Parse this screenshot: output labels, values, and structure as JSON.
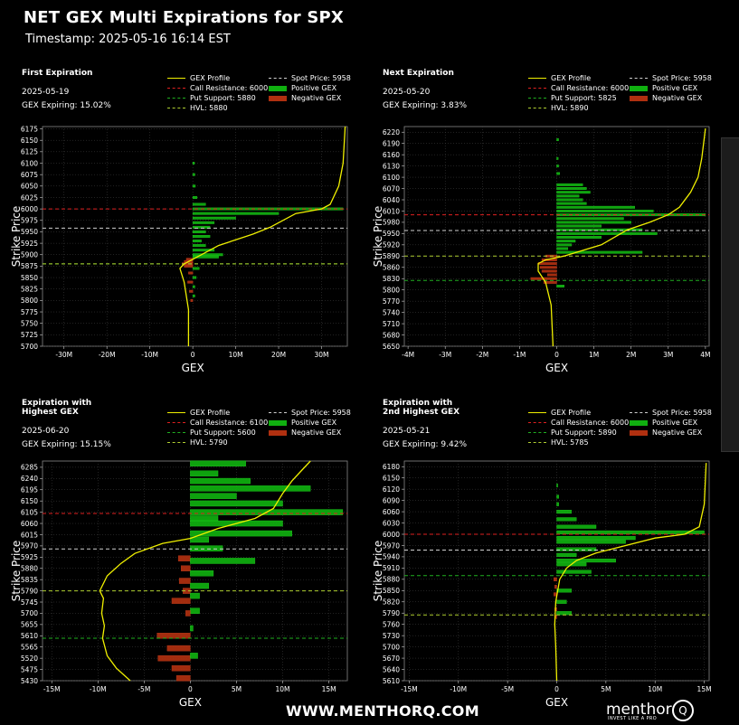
{
  "title": "NET GEX Multi Expirations for SPX",
  "timestamp": "Timestamp: 2025-05-16 16:14 EST",
  "footer_url": "WWW.MENTHORQ.COM",
  "brand": "menthor",
  "brand_tagline": "INVEST LIKE A PRO",
  "brand_mark": "Q",
  "colors": {
    "profile": "#f0f000",
    "call_res": "#e02020",
    "put_sup": "#20b020",
    "hvl": "#b0d030",
    "spot": "#d0d0d0",
    "positive": "#10b010",
    "negative": "#b03010",
    "background": "#000000"
  },
  "panels": [
    {
      "header": "First Expiration",
      "date": "2025-05-19",
      "gex_expiring": "GEX Expiring: 15.02%",
      "legend": {
        "profile": "GEX Profile",
        "call_res": "Call Resistance: 6000",
        "put_sup": "Put Support: 5880",
        "hvl": "HVL: 5880",
        "spot": "Spot Price: 5958",
        "pos": "Positive GEX",
        "neg": "Negative GEX"
      },
      "chart_data": {
        "type": "bar",
        "orientation": "horizontal",
        "xlabel": "GEX",
        "ylabel": "Strike Price",
        "xlim": [
          -35,
          36
        ],
        "ylim": [
          5700,
          6180
        ],
        "xticks": [
          -30,
          -20,
          -10,
          0,
          10,
          20,
          30
        ],
        "xtick_labels": [
          "-30M",
          "-20M",
          "-10M",
          "0",
          "10M",
          "20M",
          "30M"
        ],
        "yticks": [
          5700,
          5725,
          5750,
          5775,
          5800,
          5825,
          5850,
          5875,
          5900,
          5925,
          5950,
          5975,
          6000,
          6025,
          6050,
          6075,
          6100,
          6125,
          6150,
          6175
        ],
        "bar_height": 5,
        "bars": [
          [
            6000,
            35
          ],
          [
            5990,
            20
          ],
          [
            6010,
            3
          ],
          [
            5980,
            10
          ],
          [
            5970,
            5
          ],
          [
            5960,
            4
          ],
          [
            5950,
            3
          ],
          [
            5940,
            4
          ],
          [
            5930,
            2
          ],
          [
            5920,
            3
          ],
          [
            5910,
            5
          ],
          [
            5900,
            7
          ],
          [
            5895,
            6
          ],
          [
            5890,
            -1.5
          ],
          [
            5885,
            -2
          ],
          [
            5880,
            -2.5
          ],
          [
            5875,
            -2
          ],
          [
            5870,
            1.5
          ],
          [
            5860,
            -1
          ],
          [
            5850,
            0.8
          ],
          [
            5840,
            -1.2
          ],
          [
            5830,
            0.5
          ],
          [
            5820,
            -0.8
          ],
          [
            5810,
            0.5
          ],
          [
            5800,
            -0.5
          ],
          [
            6025,
            1
          ],
          [
            6050,
            0.6
          ],
          [
            6075,
            0.5
          ],
          [
            6100,
            0.4
          ]
        ],
        "profile": [
          [
            -1,
            5700
          ],
          [
            -1,
            5780
          ],
          [
            -2,
            5840
          ],
          [
            -3,
            5870
          ],
          [
            -2,
            5880
          ],
          [
            2,
            5900
          ],
          [
            6,
            5920
          ],
          [
            14,
            5945
          ],
          [
            18,
            5960
          ],
          [
            24,
            5990
          ],
          [
            30,
            6000
          ],
          [
            32,
            6010
          ],
          [
            34,
            6050
          ],
          [
            35,
            6100
          ],
          [
            35.5,
            6180
          ]
        ],
        "levels": {
          "call_res": 6000,
          "put_sup": 5880,
          "hvl": 5880,
          "spot": 5958
        }
      }
    },
    {
      "header": "Next Expiration",
      "date": "2025-05-20",
      "gex_expiring": "GEX Expiring: 3.83%",
      "legend": {
        "profile": "GEX Profile",
        "call_res": "Call Resistance: 6000",
        "put_sup": "Put Support: 5825",
        "hvl": "HVL: 5890",
        "spot": "Spot Price: 5958",
        "pos": "Positive GEX",
        "neg": "Negative GEX"
      },
      "chart_data": {
        "type": "bar",
        "orientation": "horizontal",
        "xlabel": "GEX",
        "ylabel": "Strike Price",
        "xlim": [
          -4.1,
          4.1
        ],
        "ylim": [
          5650,
          6235
        ],
        "xticks": [
          -4,
          -3,
          -2,
          -1,
          0,
          1,
          2,
          3,
          4
        ],
        "xtick_labels": [
          "-4M",
          "-3M",
          "-2M",
          "-1M",
          "0",
          "1M",
          "2M",
          "3M",
          "4M"
        ],
        "yticks": [
          5650,
          5680,
          5710,
          5740,
          5770,
          5800,
          5830,
          5860,
          5890,
          5920,
          5950,
          5980,
          6010,
          6040,
          6070,
          6100,
          6130,
          6160,
          6190,
          6220
        ],
        "bar_height": 6,
        "bars": [
          [
            6000,
            4
          ],
          [
            6010,
            2.6
          ],
          [
            6020,
            2.1
          ],
          [
            5990,
            1.8
          ],
          [
            5980,
            2
          ],
          [
            5970,
            1.2
          ],
          [
            5960,
            2.3
          ],
          [
            5950,
            2.7
          ],
          [
            5940,
            1.2
          ],
          [
            5930,
            0.5
          ],
          [
            5920,
            0.4
          ],
          [
            5910,
            0.3
          ],
          [
            5900,
            2.3
          ],
          [
            6030,
            0.8
          ],
          [
            6040,
            0.7
          ],
          [
            6050,
            0.6
          ],
          [
            6060,
            0.9
          ],
          [
            6070,
            0.8
          ],
          [
            6080,
            0.7
          ],
          [
            5890,
            -0.3
          ],
          [
            5880,
            -0.4
          ],
          [
            5870,
            -0.5
          ],
          [
            5860,
            -0.45
          ],
          [
            5850,
            -0.4
          ],
          [
            5840,
            -0.25
          ],
          [
            5830,
            -0.7
          ],
          [
            5820,
            -0.35
          ],
          [
            5810,
            0.2
          ],
          [
            6110,
            0.08
          ],
          [
            6130,
            0.05
          ],
          [
            6150,
            0.04
          ],
          [
            6200,
            0.05
          ]
        ],
        "profile": [
          [
            -0.1,
            5650
          ],
          [
            -0.15,
            5760
          ],
          [
            -0.3,
            5820
          ],
          [
            -0.5,
            5850
          ],
          [
            -0.5,
            5870
          ],
          [
            -0.3,
            5880
          ],
          [
            0.2,
            5890
          ],
          [
            1.2,
            5920
          ],
          [
            1.9,
            5960
          ],
          [
            2.5,
            5980
          ],
          [
            3,
            6000
          ],
          [
            3.3,
            6020
          ],
          [
            3.6,
            6060
          ],
          [
            3.8,
            6100
          ],
          [
            3.9,
            6150
          ],
          [
            4,
            6230
          ]
        ],
        "levels": {
          "call_res": 6000,
          "put_sup": 5825,
          "hvl": 5890,
          "spot": 5958
        }
      }
    },
    {
      "header": "Expiration with Highest GEX",
      "header_lines": [
        "Expiration with",
        "Highest GEX"
      ],
      "date": "2025-06-20",
      "gex_expiring": "GEX Expiring: 15.15%",
      "legend": {
        "profile": "GEX Profile",
        "call_res": "Call Resistance: 6100",
        "put_sup": "Put Support: 5600",
        "hvl": "HVL: 5790",
        "spot": "Spot Price: 5958",
        "pos": "Positive GEX",
        "neg": "Negative GEX"
      },
      "chart_data": {
        "type": "bar",
        "orientation": "horizontal",
        "xlabel": "GEX",
        "ylabel": "Strike Price",
        "xlim": [
          -16,
          17
        ],
        "ylim": [
          5430,
          6310
        ],
        "xticks": [
          -15,
          -10,
          -5,
          0,
          5,
          10,
          15
        ],
        "xtick_labels": [
          "-15M",
          "-10M",
          "-5M",
          "0",
          "5M",
          "10M",
          "15M"
        ],
        "yticks": [
          5430,
          5475,
          5520,
          5565,
          5610,
          5655,
          5700,
          5745,
          5790,
          5835,
          5880,
          5925,
          5970,
          6015,
          6060,
          6105,
          6150,
          6195,
          6240,
          6285
        ],
        "bar_height": 22,
        "bars": [
          [
            6300,
            6
          ],
          [
            6260,
            3
          ],
          [
            6230,
            6.5
          ],
          [
            6200,
            13
          ],
          [
            6170,
            5
          ],
          [
            6140,
            10
          ],
          [
            6105,
            16.5
          ],
          [
            6080,
            3
          ],
          [
            6060,
            10
          ],
          [
            6020,
            11
          ],
          [
            5995,
            2
          ],
          [
            5960,
            3.5
          ],
          [
            5920,
            -1.3
          ],
          [
            5910,
            7
          ],
          [
            5880,
            -1
          ],
          [
            5860,
            2.5
          ],
          [
            5830,
            -1.2
          ],
          [
            5810,
            2
          ],
          [
            5790,
            -0.8
          ],
          [
            5770,
            1
          ],
          [
            5750,
            -2
          ],
          [
            5710,
            1
          ],
          [
            5700,
            -0.5
          ],
          [
            5610,
            -3.6
          ],
          [
            5560,
            -2.5
          ],
          [
            5520,
            -3.5
          ],
          [
            5480,
            -2
          ],
          [
            5440,
            -1.5
          ],
          [
            5640,
            0.3
          ],
          [
            5530,
            0.8
          ]
        ],
        "profile": [
          [
            -6.5,
            5430
          ],
          [
            -8,
            5480
          ],
          [
            -9,
            5530
          ],
          [
            -9.5,
            5600
          ],
          [
            -9.3,
            5650
          ],
          [
            -9.6,
            5700
          ],
          [
            -9.4,
            5760
          ],
          [
            -9.8,
            5790
          ],
          [
            -9,
            5850
          ],
          [
            -7.5,
            5900
          ],
          [
            -6,
            5940
          ],
          [
            -3,
            5980
          ],
          [
            0,
            6000
          ],
          [
            3,
            6040
          ],
          [
            7,
            6080
          ],
          [
            9,
            6120
          ],
          [
            10,
            6180
          ],
          [
            11,
            6230
          ],
          [
            12,
            6270
          ],
          [
            13,
            6310
          ]
        ],
        "levels": {
          "call_res": 6100,
          "put_sup": 5600,
          "hvl": 5790,
          "spot": 5958
        }
      }
    },
    {
      "header": "Expiration with 2nd Highest GEX",
      "header_lines": [
        "Expiration with",
        "2nd Highest GEX"
      ],
      "date": "2025-05-21",
      "gex_expiring": "GEX Expiring: 9.42%",
      "legend": {
        "profile": "GEX Profile",
        "call_res": "Call Resistance: 6000",
        "put_sup": "Put Support: 5890",
        "hvl": "HVL: 5785",
        "spot": "Spot Price: 5958",
        "pos": "Positive GEX",
        "neg": "Negative GEX"
      },
      "chart_data": {
        "type": "bar",
        "orientation": "horizontal",
        "xlabel": "GEX",
        "ylabel": "Strike Price",
        "xlim": [
          -15.5,
          15.5
        ],
        "ylim": [
          5610,
          6195
        ],
        "xticks": [
          -15,
          -10,
          -5,
          0,
          5,
          10,
          15
        ],
        "xtick_labels": [
          "-15M",
          "-10M",
          "-5M",
          "0",
          "5M",
          "10M",
          "15M"
        ],
        "yticks": [
          5610,
          5640,
          5670,
          5700,
          5730,
          5760,
          5790,
          5820,
          5850,
          5880,
          5910,
          5940,
          5970,
          6000,
          6030,
          6060,
          6090,
          6120,
          6150,
          6180
        ],
        "bar_height": 9,
        "bars": [
          [
            6005,
            15
          ],
          [
            5990,
            8
          ],
          [
            5980,
            7
          ],
          [
            6020,
            4
          ],
          [
            6040,
            2
          ],
          [
            6060,
            1.5
          ],
          [
            5960,
            4
          ],
          [
            5945,
            2
          ],
          [
            5930,
            6
          ],
          [
            5920,
            3
          ],
          [
            5900,
            3.5
          ],
          [
            5880,
            -0.3
          ],
          [
            5860,
            -0.2
          ],
          [
            5850,
            1.5
          ],
          [
            5840,
            -0.3
          ],
          [
            5820,
            1
          ],
          [
            5800,
            -0.2
          ],
          [
            5790,
            1.5
          ],
          [
            5780,
            -0.2
          ],
          [
            6080,
            0.2
          ],
          [
            6100,
            0.2
          ],
          [
            6130,
            0.1
          ]
        ],
        "profile": [
          [
            0,
            5610
          ],
          [
            -0.1,
            5700
          ],
          [
            -0.2,
            5760
          ],
          [
            -0.1,
            5820
          ],
          [
            0.3,
            5880
          ],
          [
            1,
            5910
          ],
          [
            2,
            5930
          ],
          [
            4,
            5950
          ],
          [
            7,
            5970
          ],
          [
            10,
            5990
          ],
          [
            13,
            6000
          ],
          [
            14.5,
            6020
          ],
          [
            15,
            6080
          ],
          [
            15.2,
            6190
          ]
        ],
        "levels": {
          "call_res": 6000,
          "put_sup": 5890,
          "hvl": 5785,
          "spot": 5958
        }
      }
    }
  ]
}
